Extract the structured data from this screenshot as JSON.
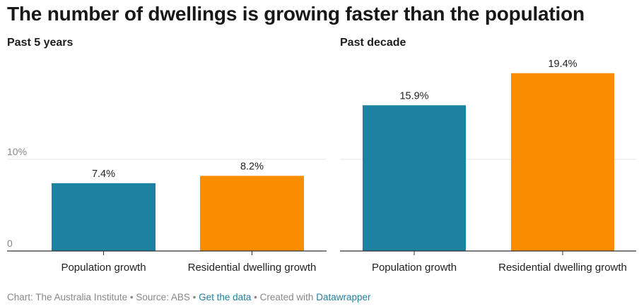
{
  "title": "The number of dwellings is growing faster than the population",
  "footer": {
    "chart_credit": "Chart: The Australia Institute",
    "sep1": " • ",
    "source": "Source: ABS",
    "sep2": " • ",
    "get_data": "Get the data",
    "sep3": " • ",
    "created_with": "Created with ",
    "datawrapper": "Datawrapper"
  },
  "colors": {
    "population": "#1d81a2",
    "dwelling": "#fa8c00"
  },
  "chart_data": [
    {
      "type": "bar",
      "title": "Past 5 years",
      "categories": [
        "Population growth",
        "Residential dwelling growth"
      ],
      "values": [
        7.4,
        8.2
      ],
      "value_labels": [
        "7.4%",
        "8.2%"
      ],
      "yticks": [
        {
          "value": 0,
          "label": "0"
        },
        {
          "value": 10,
          "label": "10%"
        }
      ],
      "ylim": [
        0,
        20
      ],
      "grid": true,
      "xlabel": "",
      "ylabel": ""
    },
    {
      "type": "bar",
      "title": "Past decade",
      "categories": [
        "Population growth",
        "Residential dwelling growth"
      ],
      "values": [
        15.9,
        19.4
      ],
      "value_labels": [
        "15.9%",
        "19.4%"
      ],
      "yticks": [
        {
          "value": 0,
          "label": ""
        },
        {
          "value": 10,
          "label": ""
        }
      ],
      "ylim": [
        0,
        20
      ],
      "grid": true,
      "xlabel": "",
      "ylabel": ""
    }
  ]
}
